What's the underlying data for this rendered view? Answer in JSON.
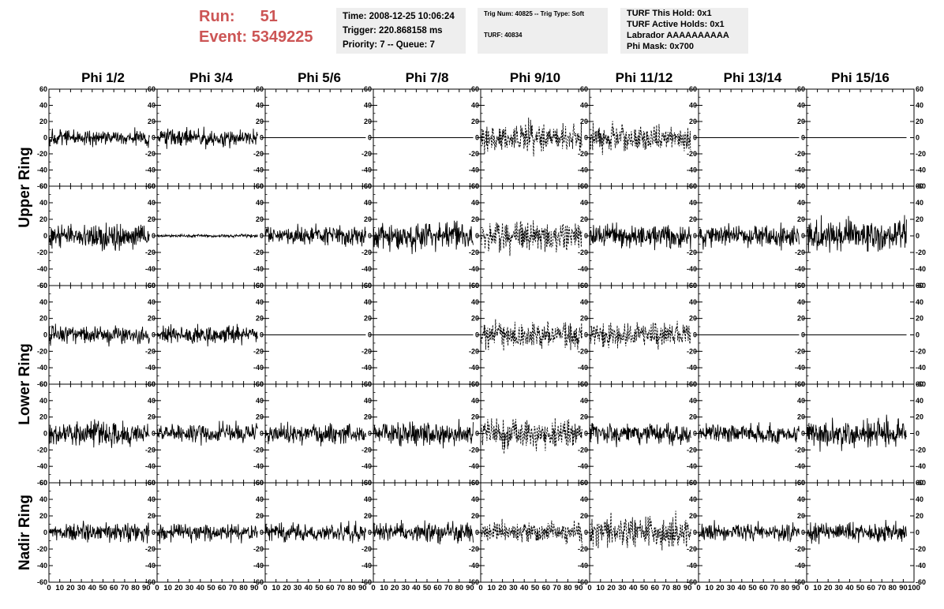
{
  "header": {
    "run_label": "Run:",
    "run_value": "51",
    "event_label": "Event:",
    "event_value": "5349225",
    "time": "Time: 2008-12-25 10:06:24",
    "trigger": "Trigger: 220.868158 ms",
    "priority": "Priority: 7 -- Queue: 7",
    "trig_num": "Trig Num: 40825 -- Trig Type: Soft",
    "turf": "TURF: 40834",
    "turf_this_hold": "TURF This Hold: 0x1",
    "turf_active_holds": "TURF Active Holds: 0x1",
    "labrador": "Labrador AAAAAAAAAA",
    "phi_mask": "Phi Mask: 0x700"
  },
  "chart_data": {
    "type": "line",
    "columns": [
      "Phi 1/2",
      "Phi 3/4",
      "Phi 5/6",
      "Phi 7/8",
      "Phi 9/10",
      "Phi 11/12",
      "Phi 13/14",
      "Phi 15/16"
    ],
    "row_groups": [
      {
        "label": "Upper Ring",
        "rows": [
          0,
          1
        ]
      },
      {
        "label": "Lower Ring",
        "rows": [
          2,
          3
        ]
      },
      {
        "label": "Nadir Ring",
        "rows": [
          4
        ]
      }
    ],
    "xlim": [
      0,
      100
    ],
    "ylim": [
      -60,
      60
    ],
    "x_ticks": [
      "0",
      "10",
      "20",
      "30",
      "40",
      "50",
      "60",
      "70",
      "80",
      "90",
      "100"
    ],
    "y_ticks": [
      "-60",
      "-40",
      "-20",
      "0",
      "20",
      "40",
      "60"
    ],
    "series_color": "#000000",
    "seed": 51,
    "x_range_trace": [
      0,
      93
    ],
    "panels": [
      [
        {
          "amp": 11,
          "style": "solid"
        },
        {
          "amp": 12,
          "style": "solid"
        },
        {
          "amp": 0,
          "style": "solid"
        },
        {
          "amp": 0,
          "style": "solid"
        },
        {
          "amp": 20,
          "style": "dashed"
        },
        {
          "amp": 19,
          "style": "dashed"
        },
        {
          "amp": 0,
          "style": "solid"
        },
        {
          "amp": 0,
          "style": "solid"
        }
      ],
      [
        {
          "amp": 17,
          "style": "solid"
        },
        {
          "amp": 2,
          "style": "solid"
        },
        {
          "amp": 13,
          "style": "solid"
        },
        {
          "amp": 18,
          "style": "solid"
        },
        {
          "amp": 22,
          "style": "dashed"
        },
        {
          "amp": 16,
          "style": "solid"
        },
        {
          "amp": 15,
          "style": "solid"
        },
        {
          "amp": 20,
          "style": "solid"
        }
      ],
      [
        {
          "amp": 12,
          "style": "solid"
        },
        {
          "amp": 12,
          "style": "solid"
        },
        {
          "amp": 0,
          "style": "solid"
        },
        {
          "amp": 0,
          "style": "solid"
        },
        {
          "amp": 17,
          "style": "dashed"
        },
        {
          "amp": 16,
          "style": "dashed"
        },
        {
          "amp": 0,
          "style": "solid"
        },
        {
          "amp": 0,
          "style": "solid"
        }
      ],
      [
        {
          "amp": 16,
          "style": "solid"
        },
        {
          "amp": 12,
          "style": "solid"
        },
        {
          "amp": 14,
          "style": "solid"
        },
        {
          "amp": 15,
          "style": "solid"
        },
        {
          "amp": 22,
          "style": "dashed"
        },
        {
          "amp": 15,
          "style": "solid"
        },
        {
          "amp": 12,
          "style": "solid"
        },
        {
          "amp": 18,
          "style": "solid"
        }
      ],
      [
        {
          "amp": 12,
          "style": "solid"
        },
        {
          "amp": 12,
          "style": "solid"
        },
        {
          "amp": 12,
          "style": "solid"
        },
        {
          "amp": 13,
          "style": "solid"
        },
        {
          "amp": 14,
          "style": "dashed"
        },
        {
          "amp": 20,
          "style": "dashed"
        },
        {
          "amp": 12,
          "style": "solid"
        },
        {
          "amp": 12,
          "style": "solid"
        }
      ]
    ]
  }
}
